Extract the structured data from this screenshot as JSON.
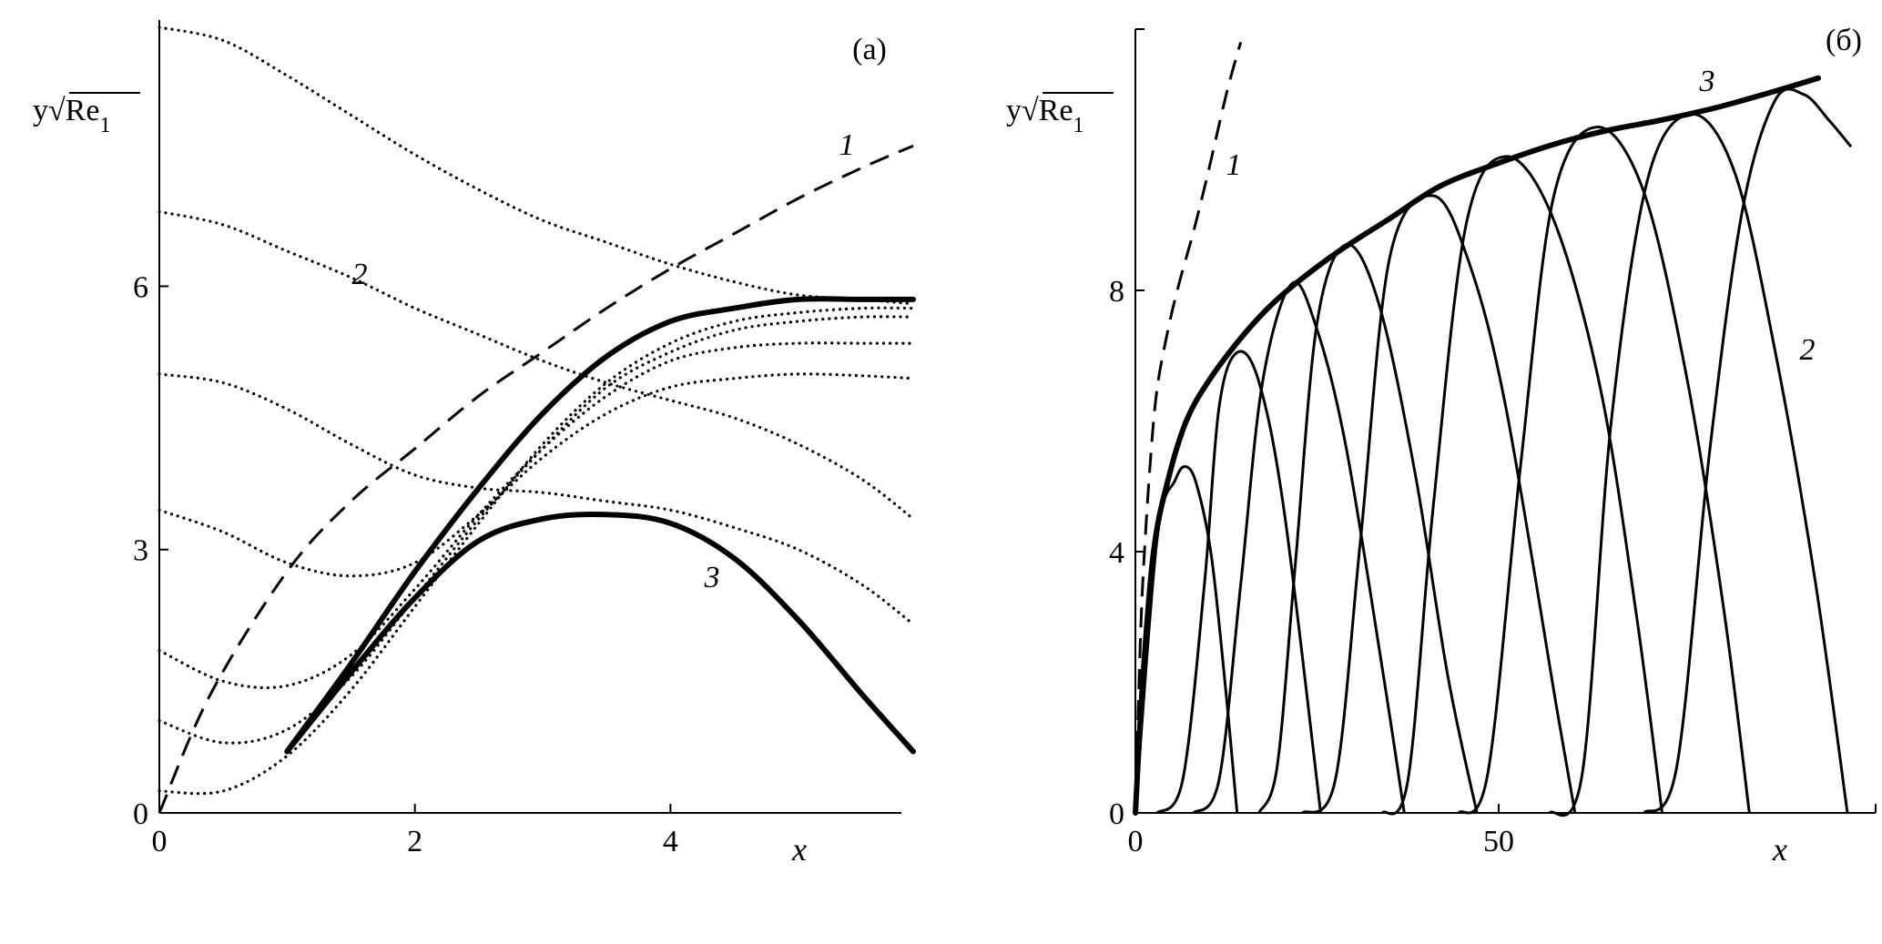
{
  "chart_data": [
    {
      "type": "line",
      "panel_label": "(а)",
      "ylabel": "y√Re",
      "ylabel_subscript": "1",
      "xlabel": "x",
      "xlim": [
        0,
        5.95
      ],
      "ylim": [
        0,
        8.95
      ],
      "xticks": [
        "0",
        "2",
        "4"
      ],
      "yticks": [
        "0",
        "3",
        "6"
      ],
      "grid": false,
      "legend": "none",
      "curve_labels": [
        "1",
        "2",
        "3"
      ],
      "series": [
        {
          "name": "1",
          "style": "dashed",
          "x": [
            0,
            0.4,
            1.0,
            1.5,
            2.0,
            2.5,
            3.0,
            3.5,
            4.0,
            4.5,
            5.0,
            5.5,
            5.9
          ],
          "y": [
            0,
            1.35,
            2.75,
            3.55,
            4.15,
            4.75,
            5.25,
            5.75,
            6.2,
            6.6,
            7.0,
            7.35,
            7.6
          ]
        },
        {
          "name": "3",
          "style": "thick",
          "x": [
            1.0,
            1.5,
            2.0,
            2.5,
            3.0,
            3.5,
            4.0,
            4.5,
            5.0,
            5.5,
            5.9
          ],
          "y": [
            0.7,
            1.7,
            2.75,
            3.7,
            4.55,
            5.2,
            5.6,
            5.75,
            5.85,
            5.85,
            5.85
          ]
        },
        {
          "name": "3",
          "style": "thick",
          "x": [
            1.0,
            1.5,
            2.0,
            2.5,
            3.0,
            3.5,
            4.0,
            4.5,
            5.0,
            5.5,
            5.9
          ],
          "y": [
            0.7,
            1.6,
            2.45,
            3.1,
            3.35,
            3.4,
            3.3,
            2.9,
            2.2,
            1.35,
            0.7
          ]
        },
        {
          "name": "2",
          "style": "dotted",
          "x": [
            0,
            0.5,
            1.0,
            1.5,
            2.0,
            2.5,
            3.0,
            3.5,
            4.0,
            4.5,
            5.0,
            5.5,
            5.9
          ],
          "y": [
            8.95,
            8.8,
            8.4,
            7.95,
            7.5,
            7.1,
            6.75,
            6.5,
            6.25,
            6.05,
            5.9,
            5.85,
            5.8
          ]
        },
        {
          "name": "",
          "style": "dotted",
          "x": [
            0,
            0.5,
            1.0,
            1.5,
            2.0,
            2.5,
            3.0,
            3.5,
            4.0,
            4.5,
            5.0,
            5.5,
            5.9
          ],
          "y": [
            6.85,
            6.7,
            6.4,
            6.1,
            5.75,
            5.45,
            5.15,
            4.9,
            4.7,
            4.5,
            4.2,
            3.8,
            3.35
          ]
        },
        {
          "name": "",
          "style": "dotted",
          "x": [
            0,
            0.5,
            1.0,
            1.5,
            2.0,
            2.5,
            3.0,
            3.5,
            4.0,
            4.5,
            5.0,
            5.5,
            5.9
          ],
          "y": [
            5.0,
            4.9,
            4.6,
            4.2,
            3.85,
            3.7,
            3.65,
            3.55,
            3.45,
            3.25,
            3.0,
            2.6,
            2.15
          ]
        },
        {
          "name": "",
          "style": "dotted",
          "x": [
            0,
            0.5,
            1.0,
            1.5,
            2.0,
            2.5,
            3.0,
            3.5,
            4.0,
            4.5,
            5.0,
            5.5,
            5.9
          ],
          "y": [
            3.45,
            3.2,
            2.85,
            2.7,
            2.85,
            3.4,
            4.05,
            4.55,
            4.85,
            4.95,
            5.0,
            4.98,
            4.95
          ]
        },
        {
          "name": "",
          "style": "dotted",
          "x": [
            0,
            0.5,
            1.0,
            1.5,
            2.0,
            2.5,
            3.0,
            3.5,
            4.0,
            4.5,
            5.0,
            5.5,
            5.9
          ],
          "y": [
            1.85,
            1.5,
            1.45,
            1.8,
            2.55,
            3.4,
            4.15,
            4.75,
            5.15,
            5.3,
            5.35,
            5.35,
            5.35
          ]
        },
        {
          "name": "",
          "style": "dotted",
          "x": [
            0,
            0.5,
            1.0,
            1.5,
            2.0,
            2.5,
            3.0,
            3.5,
            4.0,
            4.5,
            5.0,
            5.5,
            5.9
          ],
          "y": [
            1.05,
            0.8,
            0.95,
            1.55,
            2.45,
            3.35,
            4.15,
            4.85,
            5.25,
            5.5,
            5.6,
            5.65,
            5.65
          ]
        },
        {
          "name": "",
          "style": "dotted",
          "x": [
            0,
            0.5,
            1.0,
            1.5,
            2.0,
            2.5,
            3.0,
            3.5,
            4.0,
            4.5,
            5.0,
            5.5,
            5.9
          ],
          "y": [
            0.25,
            0.25,
            0.65,
            1.4,
            2.35,
            3.3,
            4.2,
            4.9,
            5.35,
            5.6,
            5.7,
            5.75,
            5.75
          ]
        }
      ]
    },
    {
      "type": "line",
      "panel_label": "(б)",
      "ylabel": "y√Re",
      "ylabel_subscript": "1",
      "xlabel": "x",
      "xlim": [
        0,
        100
      ],
      "ylim": [
        0,
        12.0
      ],
      "xticks": [
        "0",
        "50"
      ],
      "yticks": [
        "0",
        "4",
        "8"
      ],
      "grid": false,
      "legend": "none",
      "curve_labels": [
        "1",
        "2",
        "3"
      ],
      "series": [
        {
          "name": "1",
          "style": "dashed",
          "x": [
            0,
            0.5,
            1.0,
            2.0,
            3.0,
            4.5,
            6.0,
            8.0,
            10.0,
            12.5,
            14.5
          ],
          "y": [
            0,
            2.0,
            3.5,
            5.3,
            6.5,
            7.4,
            8.1,
            8.9,
            9.8,
            11.0,
            11.8
          ]
        },
        {
          "name": "3",
          "style": "thick",
          "x": [
            0,
            1.0,
            2.5,
            4.5,
            7.0,
            10.0,
            14.0,
            18.0,
            22.0,
            28.0,
            35.0,
            42.0,
            50.0,
            58.0,
            65.0,
            72.0,
            80.0,
            88.0,
            94.0
          ],
          "y": [
            0,
            2.0,
            4.0,
            5.1,
            6.0,
            6.6,
            7.2,
            7.7,
            8.1,
            8.6,
            9.1,
            9.6,
            9.95,
            10.25,
            10.45,
            10.6,
            10.8,
            11.05,
            11.25
          ]
        },
        {
          "name": "2",
          "style": "solid",
          "x": [
            0,
            3.0,
            5.5,
            7.0,
            8.5,
            10.5,
            12.5,
            14.0
          ],
          "y": [
            0,
            4.2,
            5.1,
            5.3,
            5.0,
            3.9,
            1.8,
            0
          ]
        },
        {
          "name": "",
          "style": "solid",
          "x": [
            3.0,
            6.5,
            9.5,
            11.5,
            14.0,
            17.0,
            20.5,
            25.5
          ],
          "y": [
            0,
            0.5,
            3.5,
            6.2,
            7.05,
            6.6,
            4.6,
            0
          ]
        },
        {
          "name": "",
          "style": "solid",
          "x": [
            8.0,
            11.5,
            14.5,
            17.5,
            21.5,
            25.0,
            29.0,
            34.0,
            37.0
          ],
          "y": [
            0,
            0.5,
            3.5,
            6.6,
            8.1,
            7.4,
            5.6,
            2.2,
            0
          ]
        },
        {
          "name": "",
          "style": "solid",
          "x": [
            17.0,
            19.5,
            22.0,
            25.0,
            29.0,
            33.5,
            38.5,
            43.0,
            47.0
          ],
          "y": [
            0,
            0.7,
            3.8,
            7.5,
            8.7,
            7.8,
            5.2,
            2.1,
            0
          ]
        },
        {
          "name": "",
          "style": "solid",
          "x": [
            23.0,
            27.5,
            31.0,
            35.0,
            41.0,
            46.0,
            51.0,
            58.0,
            60.5
          ],
          "y": [
            0,
            0.5,
            4.2,
            8.5,
            9.45,
            8.4,
            6.2,
            1.6,
            0
          ]
        },
        {
          "name": "",
          "style": "solid",
          "x": [
            34.0,
            37.5,
            41.0,
            45.5,
            51.0,
            57.5,
            64.0,
            69.0,
            72.5
          ],
          "y": [
            0,
            0.5,
            4.7,
            9.0,
            10.05,
            9.1,
            6.5,
            3.0,
            0
          ]
        },
        {
          "name": "",
          "style": "solid",
          "x": [
            44.5,
            48.5,
            53.0,
            57.5,
            63.5,
            70.0,
            76.0,
            81.0,
            84.5
          ],
          "y": [
            0,
            0.6,
            5.3,
            9.4,
            10.5,
            9.5,
            6.6,
            3.1,
            0
          ]
        },
        {
          "name": "",
          "style": "solid",
          "x": [
            57.0,
            61.5,
            65.5,
            70.5,
            76.5,
            82.5,
            88.0,
            93.5,
            98.0
          ],
          "y": [
            0,
            0.6,
            6.0,
            9.7,
            10.7,
            9.8,
            7.1,
            3.6,
            0
          ]
        },
        {
          "name": "",
          "style": "solid",
          "x": [
            70.0,
            74.5,
            79.0,
            83.5,
            88.0,
            92.0,
            95.5,
            98.5
          ],
          "y": [
            0,
            0.7,
            5.5,
            9.2,
            10.9,
            11.0,
            10.6,
            10.2
          ]
        }
      ]
    }
  ]
}
